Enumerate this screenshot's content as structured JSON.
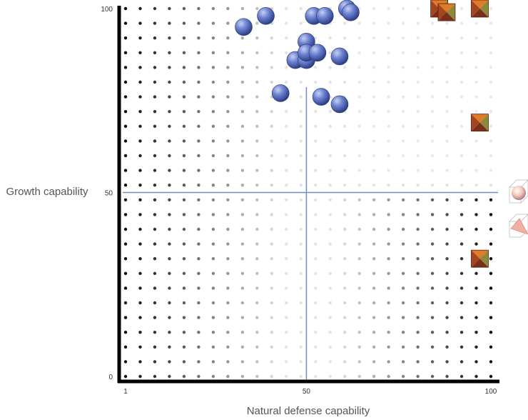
{
  "chart_data": {
    "type": "scatter",
    "title": "",
    "xlabel": "Natural defense capability",
    "ylabel": "Growth capability",
    "xlim": [
      1,
      100
    ],
    "ylim": [
      0,
      100
    ],
    "x_ticks": [
      "1",
      "50",
      "100"
    ],
    "y_ticks": [
      "0",
      "50",
      "100"
    ],
    "reference_lines": {
      "x": 50,
      "y": 50
    },
    "background_grid": "graded dot matrix",
    "colors": {
      "sphere": "#5b73c9",
      "sphere_highlight": "#a9b6ea",
      "pyramid_dark": "#7a2f1a",
      "pyramid_orange": "#e07b28",
      "pyramid_olive": "#8a8a3a",
      "ref_line": "#6f8fb8",
      "axis": "#000000"
    },
    "series": [
      {
        "marker": "sphere",
        "points": [
          [
            33,
            95
          ],
          [
            39,
            98
          ],
          [
            52,
            98
          ],
          [
            55,
            98
          ],
          [
            61,
            100
          ],
          [
            62,
            99
          ],
          [
            50,
            91
          ],
          [
            47,
            86
          ],
          [
            50,
            86
          ],
          [
            50,
            88
          ],
          [
            53,
            88
          ],
          [
            59,
            87
          ],
          [
            43,
            77
          ],
          [
            54,
            76
          ],
          [
            59,
            74
          ]
        ]
      },
      {
        "marker": "pyramid",
        "points": [
          [
            86,
            100
          ],
          [
            88,
            99
          ],
          [
            97,
            100
          ],
          [
            97,
            69
          ],
          [
            97,
            32
          ]
        ]
      }
    ]
  }
}
